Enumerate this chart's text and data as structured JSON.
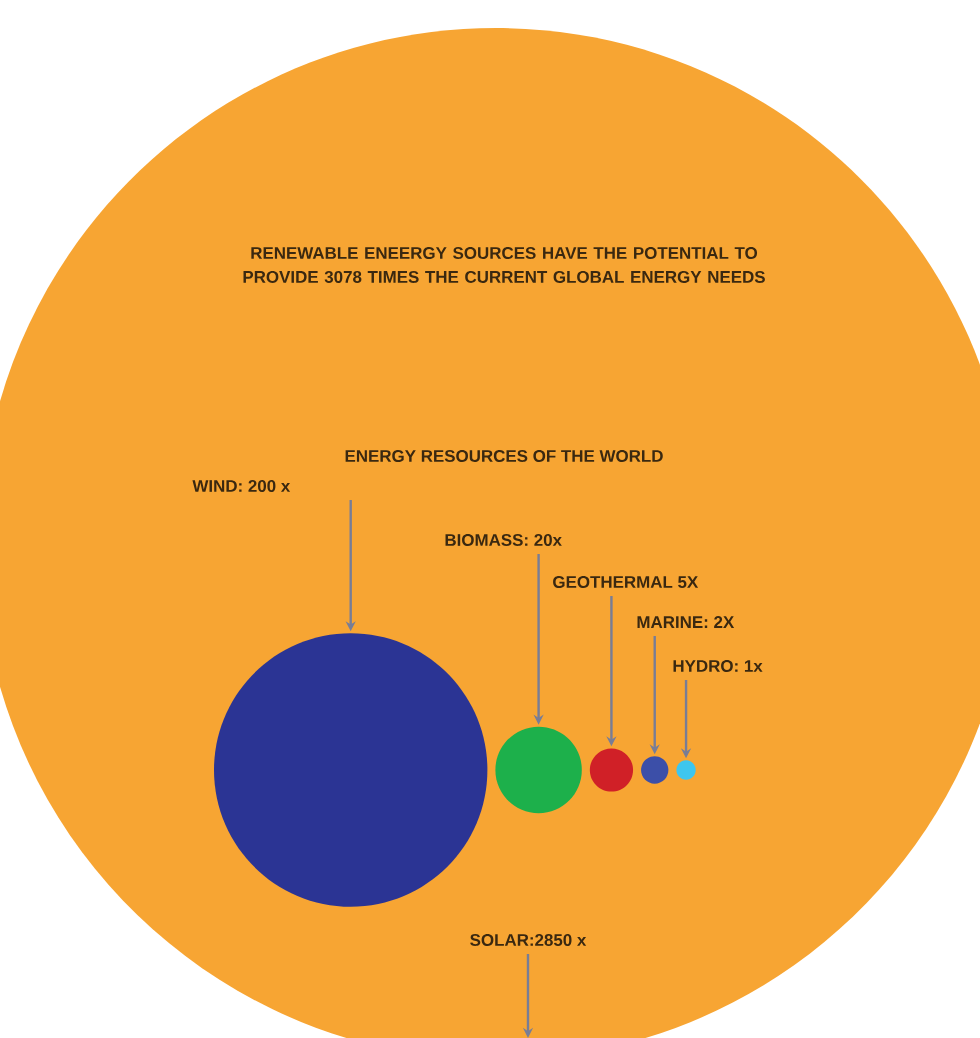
{
  "chart_data": {
    "type": "other",
    "title": "RENEWABLE ENEERGY SOURCES HAVE THE POTENTIAL TO PROVIDE 3078 TIMES THE CURRENT GLOBAL ENERGY NEEDS",
    "subtitle": "ENERGY RESOURCES OF THE WORLD",
    "categories": [
      null,
      null,
      null,
      null,
      null,
      null
    ],
    "values": [
      200,
      20,
      5,
      2,
      1,
      2850
    ],
    "value_labels": [
      "WIND: 200 x",
      "BIOMASS: 20x",
      "GEOTHERMAL 5X",
      "MARINE: 2X",
      "HYDRO: 1x",
      "SOLAR:2850 x"
    ],
    "colors": [
      "#2b3494",
      "#1db04b",
      "#d02027",
      "#3c4fa8",
      "#3ec6ee",
      "#f7a533"
    ]
  }
}
